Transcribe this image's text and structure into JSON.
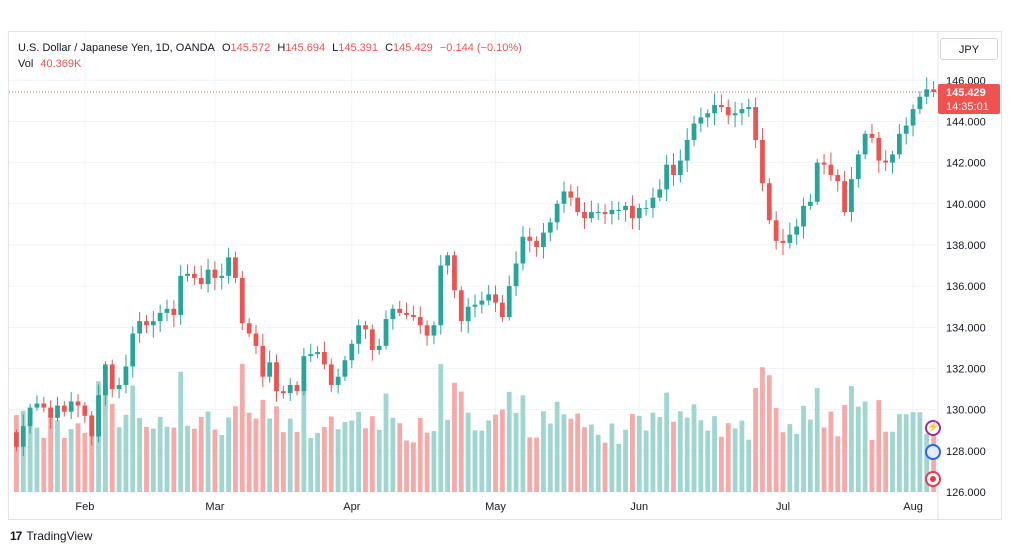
{
  "legend": {
    "title": "U.S. Dollar / Japanese Yen, 1D, OANDA",
    "open_label": "O",
    "open": "145.572",
    "high_label": "H",
    "high": "145.694",
    "low_label": "L",
    "low": "145.391",
    "close_label": "C",
    "close": "145.429",
    "change": "−0.144 (−0.10%)",
    "vol_label": "Vol",
    "vol_value": "40.369K"
  },
  "currency": "JPY",
  "price_tag": {
    "price": "145.429",
    "countdown": "14:35:01"
  },
  "brand": {
    "logo": "17",
    "name": "TradingView"
  },
  "colors": {
    "up": "#26a69a",
    "down": "#ef5350",
    "vol_up": "#9fd6cf",
    "vol_down": "#f7a9a7",
    "last_line": "#ef5350"
  },
  "icons": [
    "lightning-icon",
    "calendar-icon",
    "record-icon"
  ],
  "chart_data": {
    "type": "candlestick",
    "title": "U.S. Dollar / Japanese Yen, 1D, OANDA",
    "ylim": [
      126,
      146.5
    ],
    "y_ticks": [
      "146.000",
      "144.000",
      "142.000",
      "140.000",
      "138.000",
      "136.000",
      "134.000",
      "132.000",
      "130.000",
      "128.000",
      "126.000"
    ],
    "x_ticks": [
      "Feb",
      "Mar",
      "Apr",
      "May",
      "Jun",
      "Jul",
      "Aug"
    ],
    "grid": true,
    "last_price": 145.429,
    "close": [
      128.2,
      129.2,
      130.1,
      130.3,
      130.1,
      129.6,
      130.2,
      129.9,
      130.4,
      130.2,
      129.7,
      128.7,
      130.7,
      132.2,
      131.0,
      131.2,
      132.1,
      133.7,
      134.3,
      134.1,
      134.3,
      134.7,
      134.9,
      134.6,
      136.5,
      136.6,
      136.4,
      136.1,
      136.8,
      136.4,
      136.5,
      137.4,
      136.4,
      134.2,
      133.7,
      133.1,
      131.6,
      132.3,
      130.9,
      130.8,
      131.2,
      130.9,
      132.6,
      132.7,
      132.8,
      132.2,
      131.2,
      131.6,
      132.4,
      133.2,
      134.1,
      133.9,
      132.9,
      133.1,
      134.4,
      134.9,
      134.7,
      134.6,
      134.5,
      134.1,
      133.6,
      134.1,
      137.0,
      137.5,
      135.8,
      134.3,
      135.0,
      135.1,
      135.3,
      135.6,
      135.2,
      134.5,
      136.0,
      137.1,
      138.4,
      138.2,
      137.9,
      138.6,
      139.1,
      140.0,
      140.6,
      140.3,
      139.6,
      139.3,
      139.6,
      139.6,
      139.5,
      139.7,
      139.7,
      139.9,
      139.3,
      139.8,
      139.8,
      140.3,
      140.7,
      141.9,
      141.4,
      142.1,
      143.1,
      143.9,
      144.2,
      144.4,
      144.8,
      144.7,
      144.3,
      144.4,
      144.6,
      144.7,
      143.1,
      141.0,
      139.2,
      138.2,
      138.1,
      138.5,
      138.9,
      139.9,
      140.1,
      142.0,
      141.9,
      141.4,
      141.1,
      139.6,
      141.2,
      142.4,
      143.4,
      143.2,
      142.1,
      142.0,
      142.4,
      143.4,
      143.8,
      144.6,
      145.2,
      145.56,
      145.43
    ],
    "volume_units": "relative 0-1",
    "volume_note": "volume axis not labelled; bar heights shown relative to max"
  }
}
